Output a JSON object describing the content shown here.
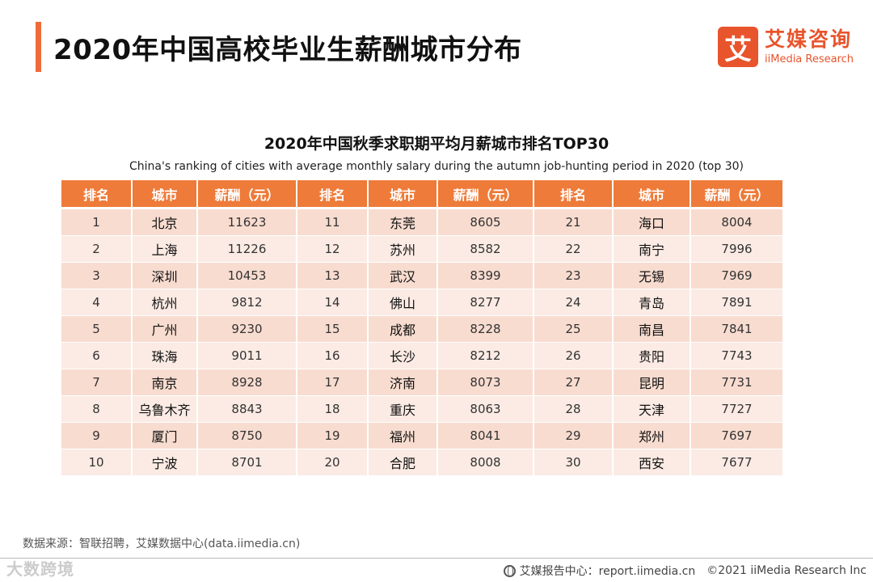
{
  "header": {
    "title": "2020年中国高校毕业生薪酬城市分布",
    "logo_mark": "艾",
    "logo_cn": "艾媒咨询",
    "logo_en": "iiMedia Research"
  },
  "colors": {
    "accent": "#ee6b3b",
    "table_header": "#ee7b39",
    "row_odd": "#f8dcd0",
    "row_even": "#fbebe4"
  },
  "chart_data": {
    "type": "table",
    "title": "2020年中国秋季求职期平均月薪城市排名TOP30",
    "subtitle": "China's ranking of cities with average monthly salary during the autumn job-hunting period in 2020 (top 30)",
    "columns": [
      "排名",
      "城市",
      "薪酬（元）",
      "排名",
      "城市",
      "薪酬（元）",
      "排名",
      "城市",
      "薪酬（元）"
    ],
    "rows": [
      [
        "1",
        "北京",
        "11623",
        "11",
        "东莞",
        "8605",
        "21",
        "海口",
        "8004"
      ],
      [
        "2",
        "上海",
        "11226",
        "12",
        "苏州",
        "8582",
        "22",
        "南宁",
        "7996"
      ],
      [
        "3",
        "深圳",
        "10453",
        "13",
        "武汉",
        "8399",
        "23",
        "无锡",
        "7969"
      ],
      [
        "4",
        "杭州",
        "9812",
        "14",
        "佛山",
        "8277",
        "24",
        "青岛",
        "7891"
      ],
      [
        "5",
        "广州",
        "9230",
        "15",
        "成都",
        "8228",
        "25",
        "南昌",
        "7841"
      ],
      [
        "6",
        "珠海",
        "9011",
        "16",
        "长沙",
        "8212",
        "26",
        "贵阳",
        "7743"
      ],
      [
        "7",
        "南京",
        "8928",
        "17",
        "济南",
        "8073",
        "27",
        "昆明",
        "7731"
      ],
      [
        "8",
        "乌鲁木齐",
        "8843",
        "18",
        "重庆",
        "8063",
        "28",
        "天津",
        "7727"
      ],
      [
        "9",
        "厦门",
        "8750",
        "19",
        "福州",
        "8041",
        "29",
        "郑州",
        "7697"
      ],
      [
        "10",
        "宁波",
        "8701",
        "20",
        "合肥",
        "8008",
        "30",
        "西安",
        "7677"
      ]
    ]
  },
  "footer": {
    "source": "数据来源：智联招聘，艾媒数据中心(data.iimedia.cn)",
    "watermark": "大数跨境",
    "report": "艾媒报告中心：report.iimedia.cn",
    "copyright": "©2021  iiMedia Research  Inc"
  }
}
